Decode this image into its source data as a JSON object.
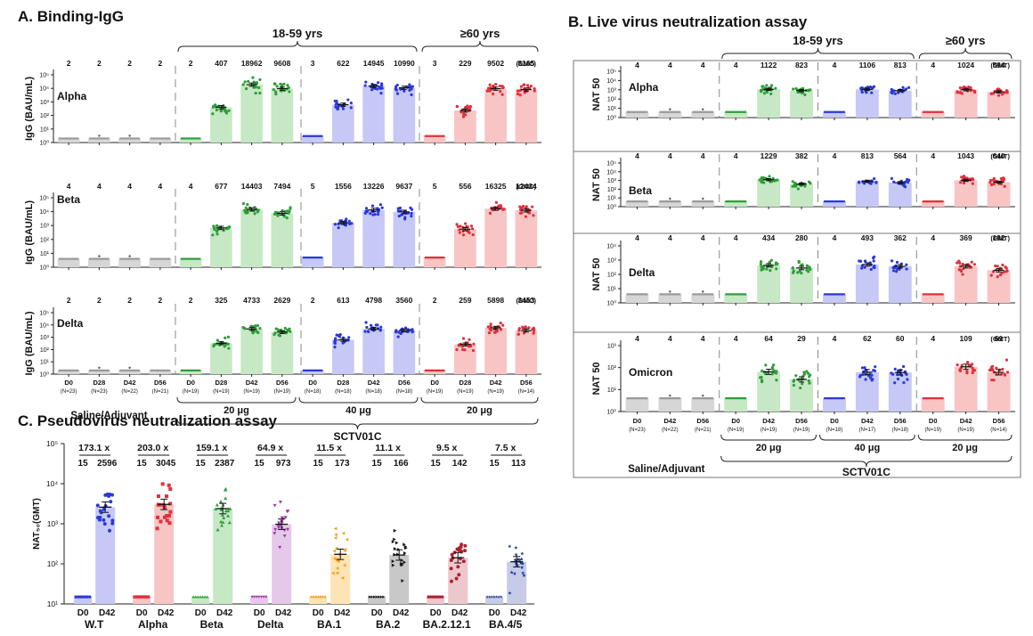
{
  "colors": {
    "gray": "#9a9a9a",
    "grayBar": "#d6d6d6",
    "green": "#2e9e3a",
    "greenBar": "#c6e8c4",
    "blue": "#2a39d6",
    "blueBar": "#c6c8f6",
    "red": "#e0303c",
    "redBar": "#f8c4c4",
    "orange": "#f5a020",
    "orangeBar": "#fde4b4",
    "purple": "#a03aa8",
    "purpleBar": "#e6c8ea",
    "black": "#1a1a1a",
    "blackBar": "#c8c8c8",
    "darkred": "#b02030",
    "darkredBar": "#ecc8cc",
    "navy": "#1a3a8e",
    "navyBar": "#c6cce8"
  },
  "chart_data": [
    {
      "panel": "A",
      "type": "bar",
      "title": "A. Binding-IgG",
      "ylabel": "IgG (BAU/mL)",
      "yscale": "log",
      "ylim": [
        1,
        100000
      ],
      "yticks": [
        "10⁰",
        "10¹",
        "10²",
        "10³",
        "10⁴",
        "10⁵"
      ],
      "group_labels": [
        "18-59 yrs",
        "≥60 yrs"
      ],
      "stat_label": "(GMC)",
      "categories": [
        "D0",
        "D28",
        "D42",
        "D56",
        "D0",
        "D28",
        "D42",
        "D56",
        "D0",
        "D28",
        "D42",
        "D56",
        "D0",
        "D28",
        "D42",
        "D56"
      ],
      "n_labels": [
        "(N=23)",
        "(N=23)",
        "(N=22)",
        "(N=21)",
        "(N=19)",
        "(N=19)",
        "(N=19)",
        "(N=19)",
        "(N=18)",
        "(N=18)",
        "(N=18)",
        "(N=18)",
        "(N=19)",
        "(N=19)",
        "(N=19)",
        "(N=14)"
      ],
      "dose_labels": [
        "20 μg",
        "40 μg",
        "20 μg"
      ],
      "bottom_labels": [
        "Saline/Adjuvant",
        "SCTV01C"
      ],
      "color_keys": [
        "gray",
        "gray",
        "gray",
        "gray",
        "green",
        "green",
        "green",
        "green",
        "blue",
        "blue",
        "blue",
        "blue",
        "red",
        "red",
        "red",
        "red"
      ],
      "subplots": [
        {
          "label": "Alpha",
          "values": [
            2,
            2,
            2,
            2,
            2,
            407,
            18962,
            9608,
            3,
            622,
            14945,
            10990,
            3,
            229,
            9502,
            8165
          ]
        },
        {
          "label": "Beta",
          "values": [
            4,
            4,
            4,
            4,
            4,
            677,
            14403,
            7494,
            5,
            1556,
            13226,
            9637,
            5,
            556,
            16325,
            12434
          ]
        },
        {
          "label": "Delta",
          "values": [
            2,
            2,
            2,
            2,
            2,
            325,
            4733,
            2629,
            2,
            613,
            4798,
            3560,
            2,
            259,
            5898,
            3453
          ]
        }
      ]
    },
    {
      "panel": "B",
      "type": "bar",
      "title": "B. Live virus neutralization assay",
      "ylabel": "NAT 50",
      "yscale": "log",
      "group_labels": [
        "18-59 yrs",
        "≥60 yrs"
      ],
      "stat_label": "(GMT)",
      "categories": [
        "D0",
        "D42",
        "D56",
        "D0",
        "D42",
        "D56",
        "D0",
        "D42",
        "D56",
        "D0",
        "D42",
        "D56"
      ],
      "n_labels": [
        "(N=23)",
        "(N=22)",
        "(N=21)",
        "(N=19)",
        "(N=19)",
        "(N=19)",
        "(N=18)",
        "(N=17)",
        "(N=18)",
        "(N=19)",
        "(N=19)",
        "(N=14)"
      ],
      "dose_labels": [
        "20 μg",
        "40 μg",
        "20 μg"
      ],
      "bottom_labels": [
        "Saline/Adjuvant",
        "SCTV01C"
      ],
      "color_keys": [
        "gray",
        "gray",
        "gray",
        "green",
        "green",
        "green",
        "blue",
        "blue",
        "blue",
        "red",
        "red",
        "red"
      ],
      "subplots": [
        {
          "label": "Alpha",
          "ylim": [
            1,
            100000
          ],
          "yticks": [
            "10⁰",
            "10¹",
            "10²",
            "10³",
            "10⁴",
            "10⁵"
          ],
          "values": [
            4,
            4,
            4,
            4,
            1122,
            823,
            4,
            1106,
            813,
            4,
            1024,
            594
          ]
        },
        {
          "label": "Beta",
          "ylim": [
            1,
            100000
          ],
          "yticks": [
            "10⁰",
            "10¹",
            "10²",
            "10³",
            "10⁴",
            "10⁵"
          ],
          "values": [
            4,
            4,
            4,
            4,
            1229,
            382,
            4,
            813,
            564,
            4,
            1043,
            640
          ]
        },
        {
          "label": "Delta",
          "ylim": [
            1,
            10000
          ],
          "yticks": [
            "10⁰",
            "10¹",
            "10²",
            "10³",
            "10⁴"
          ],
          "values": [
            4,
            4,
            4,
            4,
            434,
            280,
            4,
            493,
            362,
            4,
            369,
            192
          ]
        },
        {
          "label": "Omicron",
          "ylim": [
            1,
            1000
          ],
          "yticks": [
            "10⁰",
            "10¹",
            "10²",
            "10³"
          ],
          "values": [
            4,
            4,
            4,
            4,
            64,
            29,
            4,
            62,
            60,
            4,
            109,
            61
          ]
        }
      ]
    },
    {
      "panel": "C",
      "type": "bar",
      "title": "C. Pseudovirus neutralization assay",
      "ylabel": "NAT₅₀(GMT)",
      "yscale": "log",
      "ylim": [
        10,
        100000
      ],
      "yticks": [
        "10¹",
        "10²",
        "10³",
        "10⁴",
        "10⁵"
      ],
      "groups": [
        {
          "name": "W.T",
          "fold": "173.1 x",
          "values": [
            15,
            2596
          ],
          "color_key": "blue",
          "marker": "circle"
        },
        {
          "name": "Alpha",
          "fold": "203.0 x",
          "values": [
            15,
            3045
          ],
          "color_key": "red",
          "marker": "square"
        },
        {
          "name": "Beta",
          "fold": "159.1 x",
          "values": [
            15,
            2387
          ],
          "color_key": "green",
          "marker": "triangle"
        },
        {
          "name": "Delta",
          "fold": "64.9 x",
          "values": [
            15,
            973
          ],
          "color_key": "purple",
          "marker": "triangle-down"
        },
        {
          "name": "BA.1",
          "fold": "11.5 x",
          "values": [
            15,
            173
          ],
          "color_key": "orange",
          "marker": "triangle-left"
        },
        {
          "name": "BA.2",
          "fold": "11.1 x",
          "values": [
            15,
            166
          ],
          "color_key": "black",
          "marker": "triangle-right"
        },
        {
          "name": "BA.2.12.1",
          "fold": "9.5 x",
          "values": [
            15,
            142
          ],
          "color_key": "darkred",
          "marker": "circle"
        },
        {
          "name": "BA.4/5",
          "fold": "7.5 x",
          "values": [
            15,
            113
          ],
          "color_key": "navy",
          "marker": "star"
        }
      ],
      "categories": [
        "D0",
        "D42"
      ]
    }
  ]
}
